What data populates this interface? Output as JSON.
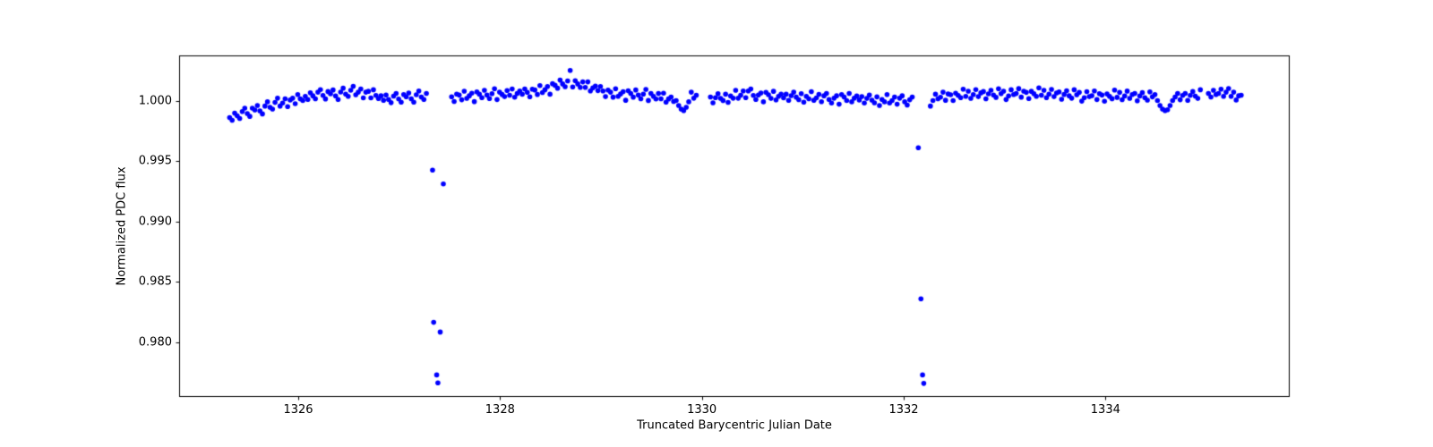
{
  "figure": {
    "background": "#ffffff",
    "axis_color": "#000000",
    "text_color": "#000000"
  },
  "chart_data": {
    "type": "scatter",
    "title": "",
    "xlabel": "Truncated Barycentric Julian Date",
    "ylabel": "Normalized PDC flux",
    "xlim": [
      1324.8195,
      1335.8255
    ],
    "ylim": [
      0.97548,
      1.00374
    ],
    "x_ticks": [
      1326,
      1328,
      1330,
      1332,
      1334
    ],
    "x_tick_labels": [
      "1326",
      "1328",
      "1330",
      "1332",
      "1334"
    ],
    "y_ticks": [
      0.98,
      0.985,
      0.99,
      0.995,
      1.0
    ],
    "y_tick_labels": [
      "0.980",
      "0.985",
      "0.990",
      "0.995",
      "1.000"
    ],
    "grid": false,
    "legend": "none",
    "marker": {
      "shape": "circle",
      "color": "#0000ff",
      "radius_px": 2.8
    },
    "series_name": "PDC flux",
    "cadence_days": 0.025,
    "segments": [
      {
        "x_start": 1325.32,
        "y": [
          0.9986,
          0.99838,
          0.99896,
          0.99874,
          0.99852,
          0.9991,
          0.99937,
          0.99893,
          0.9987,
          0.99937,
          0.99923,
          0.9996,
          0.99915,
          0.9989,
          0.99955,
          0.9999,
          0.99945,
          0.9993,
          0.99985,
          1.0002,
          0.99955,
          0.9998,
          1.00015,
          0.9995,
          1.00005,
          1.0002,
          0.99975,
          1.0005,
          1.00015,
          1.0,
          1.00035,
          1.0001,
          1.00065,
          1.0004,
          1.00015,
          1.0007,
          1.00091,
          1.00043,
          1.00014,
          1.00075,
          1.00056,
          1.00088,
          1.00039,
          1.0001,
          1.00071,
          1.00103,
          1.00054,
          1.00035,
          1.00086,
          1.00118,
          1.00049,
          1.0007,
          1.00097,
          1.00023,
          1.0007,
          1.00077,
          1.00023,
          1.0009,
          1.00043,
          1.00017,
          1.0004,
          1.00003,
          1.00047,
          1.0001,
          0.99983,
          1.00037,
          1.0006,
          1.00013,
          0.99987,
          1.0005,
          1.00032,
          1.00063,
          1.00015,
          0.99987,
          1.00048,
          1.0008,
          1.0003,
          1.0001,
          1.0006
        ]
      },
      {
        "x_start": 1327.52,
        "y": [
          1.00032,
          0.99993,
          1.00054,
          1.00046,
          1.00007,
          1.00078,
          1.00019,
          1.0004,
          1.00061,
          0.99992,
          1.00073,
          1.00053,
          1.00024,
          1.00085,
          1.00046,
          1.00017,
          1.00058,
          1.00098,
          1.00009,
          1.0007,
          1.00051,
          1.00033,
          1.00084,
          1.00045,
          1.00096,
          1.00028,
          1.00059,
          1.0008,
          1.00053,
          1.00096,
          1.00069,
          1.00032,
          1.00095,
          1.00088,
          1.00051,
          1.00124,
          1.00067,
          1.0009,
          1.00117,
          1.00053,
          1.0014,
          1.00127,
          1.00103,
          1.0017,
          1.00138,
          1.00115,
          1.00163,
          1.0025,
          1.00113,
          1.00165,
          1.00138,
          1.0011,
          1.00155,
          1.0011,
          1.00155,
          1.0008,
          1.00105,
          1.0012,
          1.00083,
          1.00117,
          1.0008,
          1.00033,
          1.00087,
          1.0007,
          1.00029,
          1.00098,
          1.00036,
          1.00055,
          1.00074,
          1.00003,
          1.00081,
          1.0006,
          1.00029,
          1.00088,
          1.00046,
          1.00015,
          1.00054,
          1.00093,
          1.00001,
          1.0006,
          1.00036,
          1.00013,
          1.00059,
          1.00015,
          1.00061,
          0.99988,
          1.00014,
          1.0003,
          0.99993,
          1.0,
          0.9996,
          0.9993,
          0.99918,
          0.99945,
          0.9999,
          1.0007,
          1.0002,
          1.00045
        ]
      },
      {
        "x_start": 1330.085,
        "y": [
          1.0003,
          0.99982,
          1.00024,
          1.00057,
          1.00019,
          1.00001,
          1.00053,
          0.99986,
          1.00038,
          1.0002,
          1.00085,
          1.0002,
          1.00045,
          1.0008,
          1.00025,
          1.0008,
          1.00097,
          1.00043,
          1.0001,
          1.00047,
          1.00063,
          0.9999,
          1.00069,
          1.00048,
          1.00018,
          1.00077,
          1.00006,
          1.00035,
          1.00054,
          1.00023,
          1.00053,
          1.00002,
          1.00041,
          1.0007,
          1.00029,
          1.00008,
          1.00058,
          0.99987,
          1.00036,
          1.00015,
          1.00074,
          1.00003,
          1.00023,
          1.00052,
          0.99991,
          1.0004,
          1.0006,
          1.0001,
          0.9998,
          1.0002,
          1.0004,
          0.9997,
          1.0005,
          1.0003,
          1.0,
          1.0006,
          0.9999,
          1.0002,
          1.00038,
          1.00005,
          1.00033,
          0.9998,
          1.00018,
          1.00046,
          1.00004,
          0.99982,
          1.00031,
          0.9996,
          1.0001,
          0.9999,
          1.0005,
          0.9998,
          1.0,
          1.0003,
          0.9997,
          1.0002,
          1.0004,
          0.9999,
          0.99963,
          1.00007,
          1.0003
        ]
      },
      {
        "x_start": 1332.29,
        "y": [
          1.0,
          1.00053,
          1.00015,
          1.00028,
          1.0007,
          1.00003,
          1.00055,
          1.00048,
          1.0,
          1.00061,
          1.00043,
          1.00024,
          1.00095,
          1.00036,
          1.00078,
          1.00019,
          1.0005,
          1.00091,
          1.00033,
          1.00064,
          1.00075,
          1.00015,
          1.00056,
          1.00086,
          1.00047,
          1.00027,
          1.00098,
          1.00058,
          1.00078,
          1.00009,
          1.00039,
          1.0009,
          1.0005,
          1.00059,
          1.00099,
          1.00029,
          1.00078,
          1.00068,
          1.00017,
          1.00077,
          1.00057,
          1.00036,
          1.00106,
          1.00045,
          1.00085,
          1.00024,
          1.00054,
          1.00093,
          1.00033,
          1.00063,
          1.00072,
          1.00012,
          1.00051,
          1.00081,
          1.0004,
          1.0002,
          1.0009,
          1.00049,
          1.00068,
          0.99996,
          1.00025,
          1.00074,
          1.00033,
          1.00041,
          1.0008,
          1.00009,
          1.00058,
          1.00046,
          0.99995,
          1.00055,
          1.00036,
          1.00016,
          1.00087,
          1.00027,
          1.00068,
          1.00008,
          1.00038,
          1.00079,
          1.00019,
          1.0005,
          1.0006,
          0.99999,
          1.00038,
          1.00066,
          1.00025,
          1.00004,
          1.00073,
          1.00031,
          1.0005,
          1.0,
          0.9996,
          0.9993,
          0.99918,
          0.99925,
          0.9996,
          1.0,
          1.0003,
          1.0006,
          1.00007,
          1.00043,
          1.0006,
          1.00002,
          1.00043,
          1.00075,
          1.00037,
          1.00018,
          1.0009
        ]
      },
      {
        "x_start": 1335.02,
        "y": [
          1.0006,
          1.0003,
          1.00085,
          1.0005,
          1.0006,
          1.00095,
          1.00035,
          1.0007,
          1.001,
          1.00035,
          1.0007,
          1.00005,
          1.0004,
          1.00045
        ]
      }
    ],
    "transit_points": [
      [
        1327.331,
        0.99425
      ],
      [
        1327.342,
        0.98165
      ],
      [
        1327.372,
        0.9773
      ],
      [
        1327.384,
        0.97665
      ],
      [
        1327.407,
        0.98085
      ],
      [
        1327.438,
        0.9931
      ],
      [
        1332.145,
        0.9961
      ],
      [
        1332.171,
        0.9836
      ],
      [
        1332.187,
        0.9773
      ],
      [
        1332.199,
        0.9766
      ],
      [
        1332.265,
        0.99955
      ]
    ]
  }
}
